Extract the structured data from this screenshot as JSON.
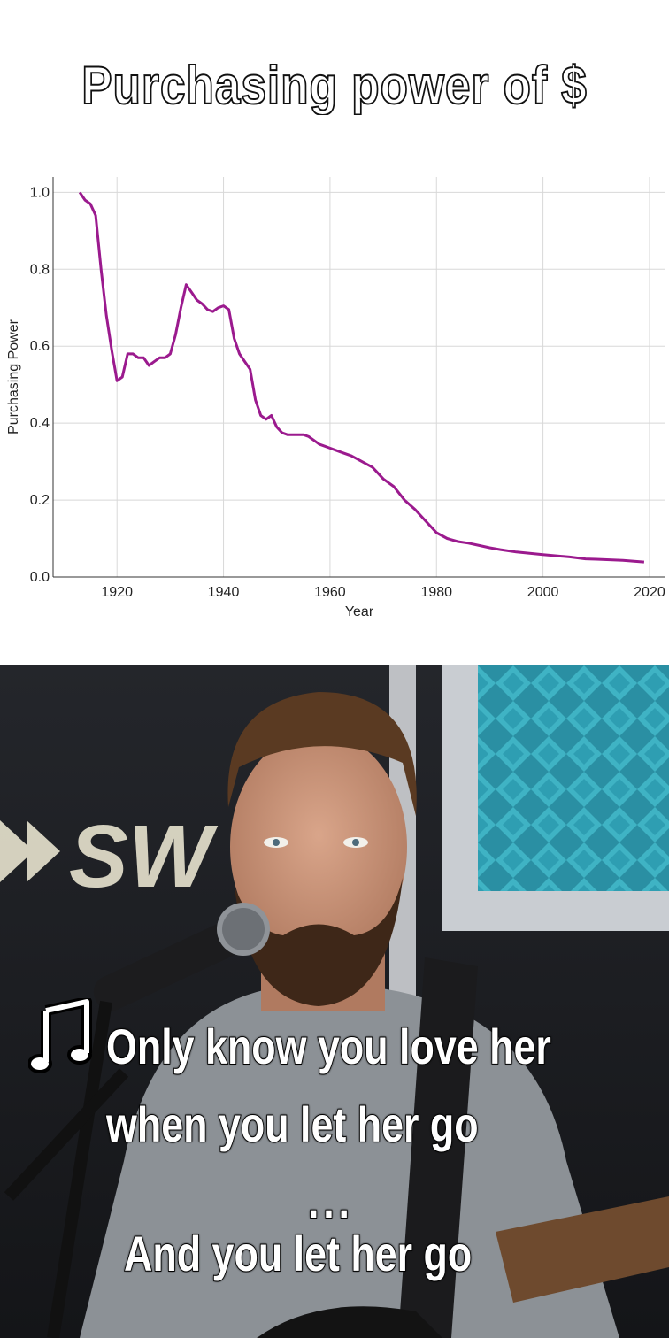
{
  "meme": {
    "title": "Purchasing power of  $",
    "caption_note_icon": "music-note-icon",
    "caption_lines": [
      "Only know you love her",
      "when you let her go",
      "...",
      "And you let her go"
    ]
  },
  "chart_data": {
    "type": "line",
    "xlabel": "Year",
    "ylabel": "Purchasing Power",
    "xlim": [
      1908,
      2023
    ],
    "ylim": [
      0,
      1.04
    ],
    "x_ticks": [
      1920,
      1940,
      1960,
      1980,
      2000,
      2020
    ],
    "y_ticks": [
      "0.0",
      "0.2",
      "0.4",
      "0.6",
      "0.8",
      "1.0"
    ],
    "grid": true,
    "line_color": "#9b1a8e",
    "series": [
      {
        "x": [
          1913,
          1914,
          1915,
          1916,
          1917,
          1918,
          1919,
          1920,
          1921,
          1922,
          1923,
          1924,
          1925,
          1926,
          1927,
          1928,
          1929,
          1930,
          1931,
          1932,
          1933,
          1934,
          1935,
          1936,
          1937,
          1938,
          1939,
          1940,
          1941,
          1942,
          1943,
          1944,
          1945,
          1946,
          1947,
          1948,
          1949,
          1950,
          1951,
          1952,
          1953,
          1954,
          1955,
          1956,
          1957,
          1958,
          1959,
          1960,
          1962,
          1964,
          1966,
          1968,
          1969,
          1970,
          1972,
          1974,
          1976,
          1978,
          1980,
          1982,
          1984,
          1986,
          1988,
          1990,
          1992,
          1995,
          2000,
          2005,
          2008,
          2010,
          2015,
          2019
        ],
        "y": [
          1.0,
          0.98,
          0.97,
          0.94,
          0.8,
          0.68,
          0.59,
          0.51,
          0.52,
          0.58,
          0.58,
          0.57,
          0.57,
          0.55,
          0.56,
          0.57,
          0.57,
          0.58,
          0.63,
          0.7,
          0.76,
          0.74,
          0.72,
          0.71,
          0.695,
          0.69,
          0.7,
          0.705,
          0.695,
          0.62,
          0.58,
          0.56,
          0.54,
          0.46,
          0.42,
          0.41,
          0.42,
          0.39,
          0.375,
          0.37,
          0.37,
          0.37,
          0.37,
          0.365,
          0.355,
          0.345,
          0.34,
          0.335,
          0.325,
          0.315,
          0.3,
          0.285,
          0.27,
          0.255,
          0.235,
          0.2,
          0.175,
          0.145,
          0.115,
          0.1,
          0.092,
          0.088,
          0.082,
          0.076,
          0.071,
          0.065,
          0.058,
          0.052,
          0.047,
          0.046,
          0.043,
          0.039
        ]
      }
    ]
  }
}
